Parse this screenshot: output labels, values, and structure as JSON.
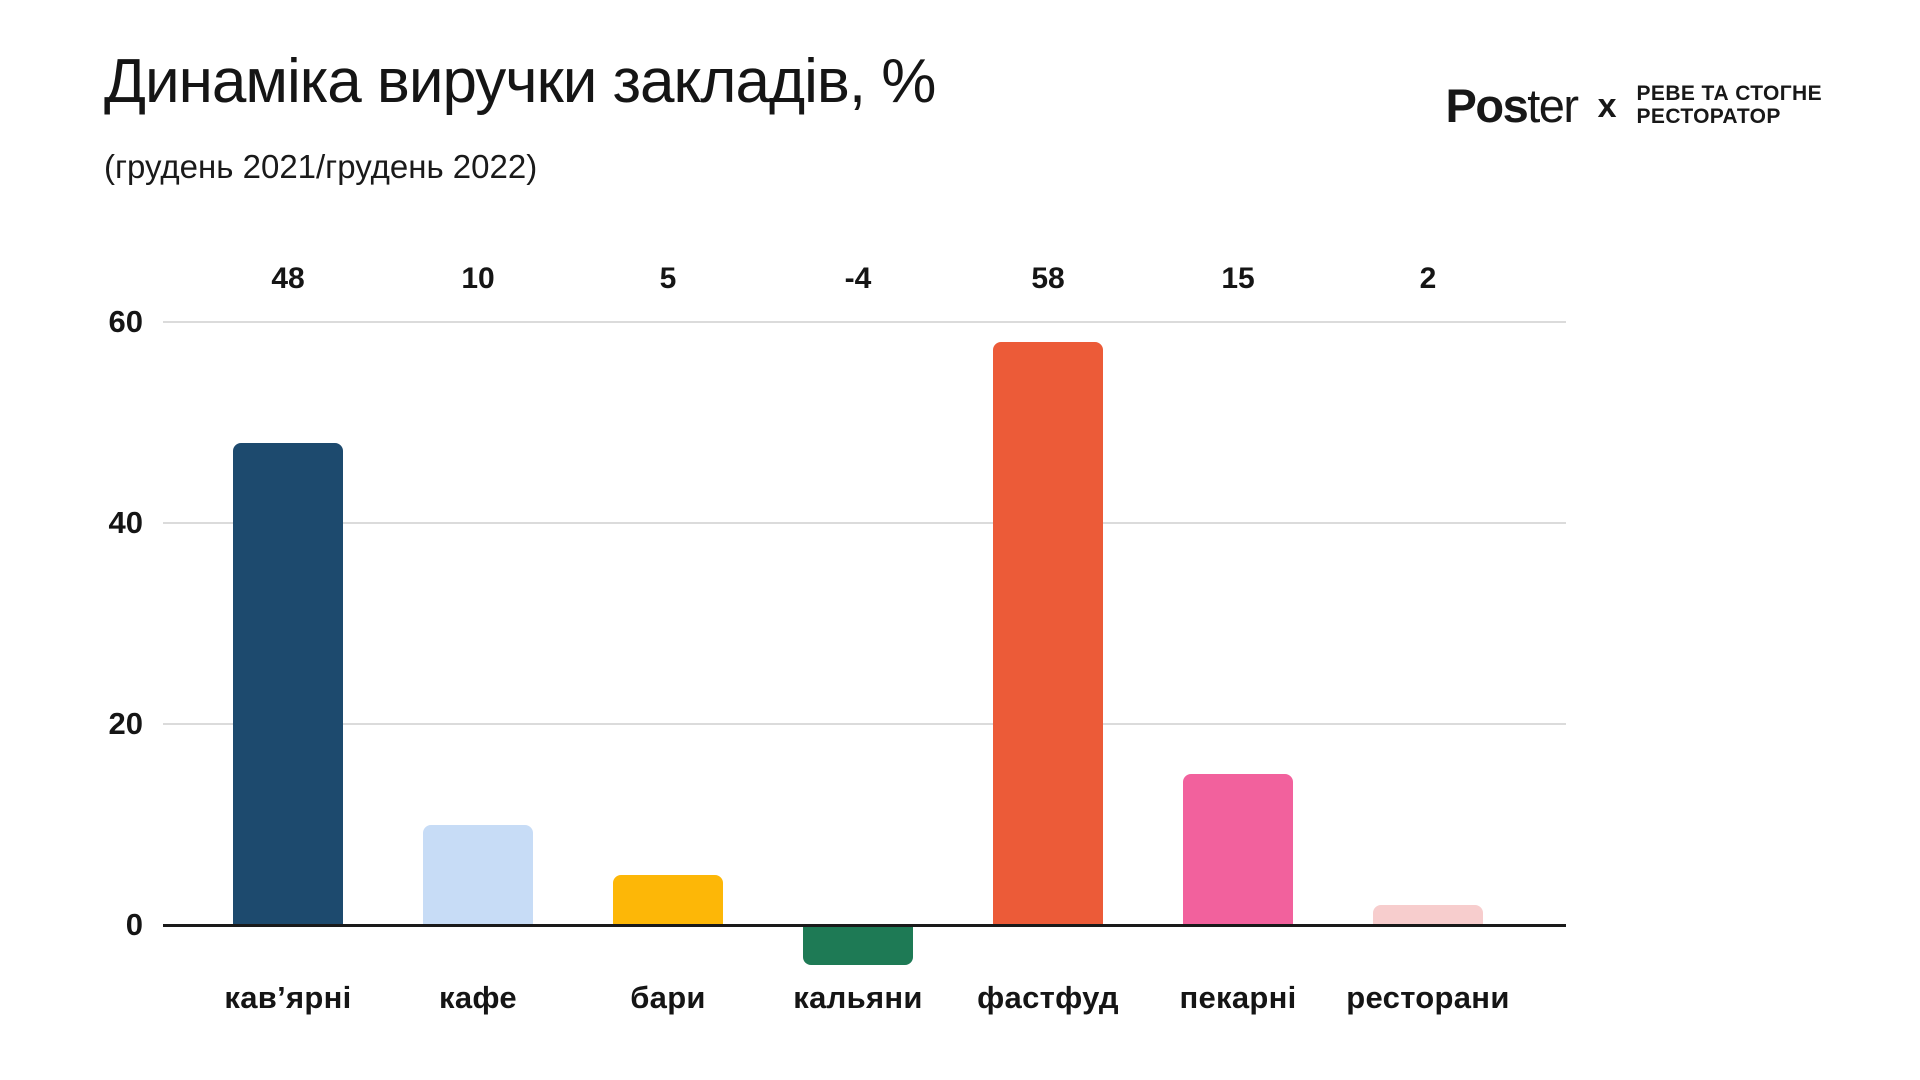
{
  "header": {
    "title": "Динаміка виручки закладів, %",
    "subtitle": "(грудень 2021/грудень 2022)"
  },
  "logo": {
    "brand_bold": "Pos",
    "brand_light": "ter",
    "separator": "x",
    "partner_line1": "РЕВЕ ТА СТОГНЕ",
    "partner_line2": "РЕСТОРАТОР"
  },
  "chart_data": {
    "type": "bar",
    "title": "Динаміка виручки закладів, %",
    "subtitle": "(грудень 2021/грудень 2022)",
    "categories": [
      "кав’ярні",
      "кафе",
      "бари",
      "кальяни",
      "фастфуд",
      "пекарні",
      "ресторани"
    ],
    "values": [
      48,
      10,
      5,
      -4,
      58,
      15,
      2
    ],
    "value_labels": [
      "48",
      "10",
      "5",
      "-4",
      "58",
      "15",
      "2"
    ],
    "bar_colors": [
      "#1D4A6E",
      "#C7DCF6",
      "#FDB707",
      "#1E7A55",
      "#EC5B38",
      "#F2619D",
      "#F7CDCD"
    ],
    "xlabel": "",
    "ylabel": "",
    "yticks": [
      60,
      40,
      20,
      0
    ],
    "ylim": [
      -8,
      62
    ],
    "grid": "horizontal-gridlines-on",
    "legend": "none",
    "gridline_color": "#DBDBDB",
    "axis_color": "#1a1a1a",
    "text_color": "#151515",
    "background_color": "#ffffff"
  }
}
